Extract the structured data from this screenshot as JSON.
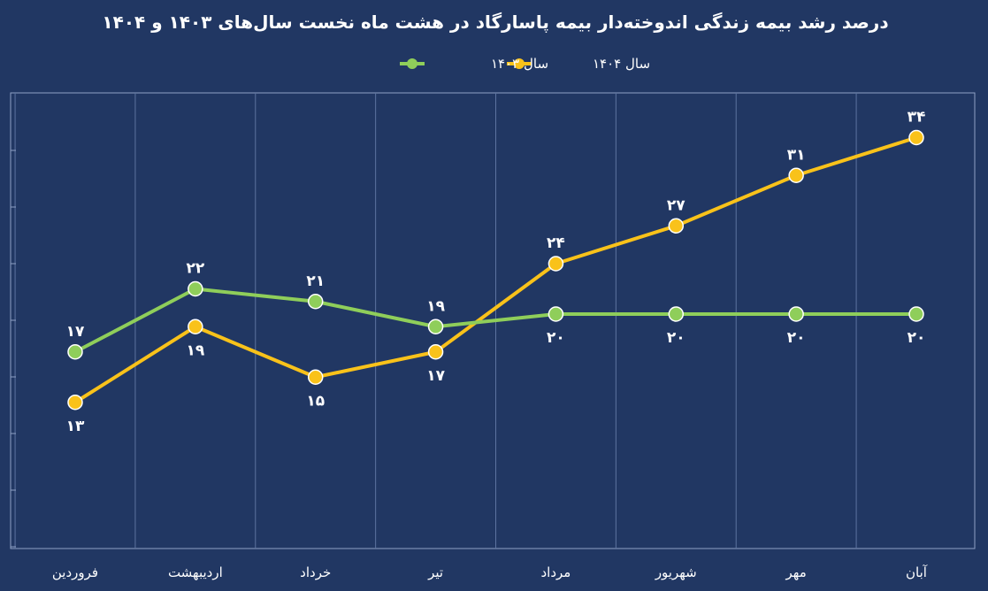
{
  "chart_data": {
    "type": "line",
    "title": "درصد رشد بیمه زندگی اندوخته‌دار بیمه پاسارگاد در هشت ماه نخست سال‌های ۱۴۰۳ و ۱۴۰۴",
    "xlabel": "",
    "ylabel": "",
    "categories": [
      "فروردین",
      "اردیبهشت",
      "خرداد",
      "تیر",
      "مرداد",
      "شهریور",
      "مهر",
      "آبان"
    ],
    "series": [
      {
        "name": "سال ۱۴۰۳",
        "color": "#8fce5a",
        "values": [
          17,
          22,
          21,
          19,
          20,
          20,
          20,
          20
        ],
        "labels": [
          "۱۷",
          "۲۲",
          "۲۱",
          "۱۹",
          "۲۰",
          "۲۰",
          "۲۰",
          "۲۰"
        ],
        "label_position": [
          "above",
          "above",
          "above",
          "above",
          "below",
          "below",
          "below",
          "below"
        ]
      },
      {
        "name": "سال ۱۴۰۴",
        "color": "#f9c21a",
        "values": [
          13,
          19,
          15,
          17,
          24,
          27,
          31,
          34
        ],
        "labels": [
          "۱۳",
          "۱۹",
          "۱۵",
          "۱۷",
          "۲۴",
          "۲۷",
          "۳۱",
          "۳۴"
        ],
        "label_position": [
          "below",
          "below",
          "below",
          "below",
          "above",
          "above",
          "above",
          "above"
        ]
      }
    ],
    "ylim": [
      0,
      40
    ],
    "grid": "vertical",
    "legend": "top-center"
  }
}
